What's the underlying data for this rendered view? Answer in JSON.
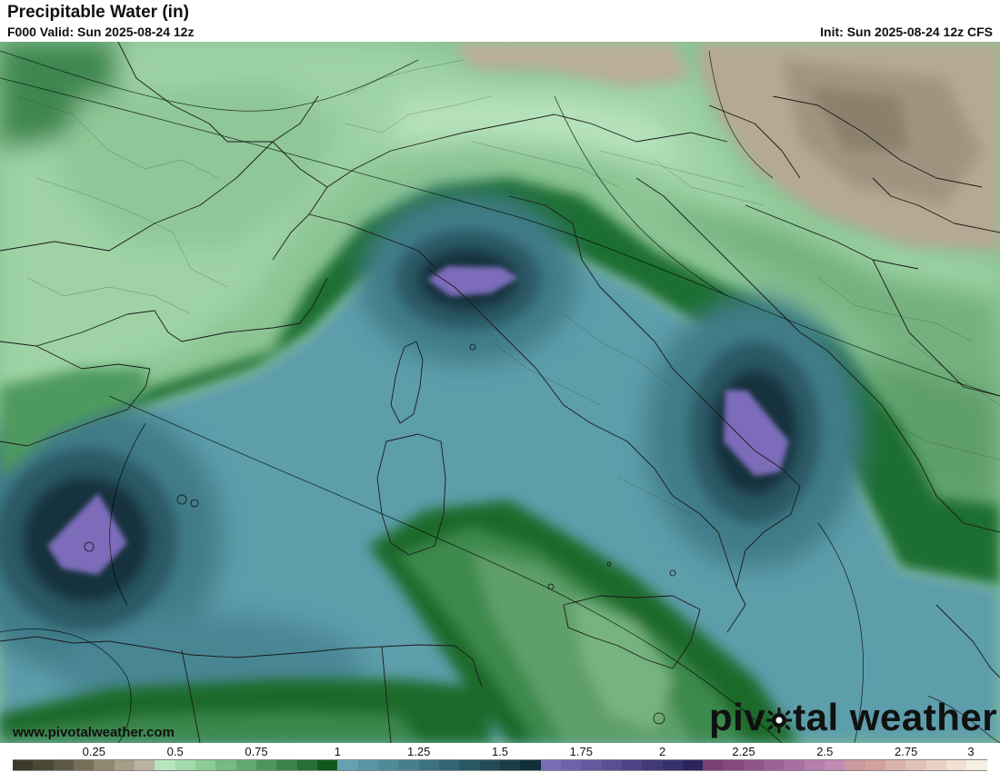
{
  "header": {
    "title": "Precipitable Water (in)",
    "valid": "F000 Valid: Sun 2025-08-24 12z",
    "init": "Init: Sun 2025-08-24 12z CFS"
  },
  "footer": {
    "url": "www.pivotalweather.com",
    "brand_left": "piv",
    "brand_right": "tal weather",
    "logo_icon": "sun-gear-icon"
  },
  "legend": {
    "ticks": [
      "0.25",
      "0.5",
      "0.75",
      "1",
      "1.25",
      "1.5",
      "1.75",
      "2",
      "2.25",
      "2.5",
      "2.75",
      "3"
    ],
    "colors": [
      "#3c3a2c",
      "#4c4836",
      "#5e5944",
      "#766f57",
      "#8f876f",
      "#a59d86",
      "#b9b29e",
      "#b6e6bd",
      "#a3d9ab",
      "#8ccb98",
      "#77bb84",
      "#62aa70",
      "#4c965c",
      "#388448",
      "#246f35",
      "#0e5a1c",
      "#63a2b2",
      "#5895a5",
      "#4f8a99",
      "#467e8d",
      "#3d7281",
      "#346573",
      "#2a5966",
      "#214b57",
      "#1a3d48",
      "#10303a",
      "#7b6cba",
      "#6f62ad",
      "#64589f",
      "#594e93",
      "#4d4486",
      "#423a79",
      "#36306b",
      "#2a255e",
      "#7a3f75",
      "#85497f",
      "#90558a",
      "#9c6295",
      "#a870a1",
      "#b47ead",
      "#c08bb5",
      "#cc98a0",
      "#d3a39b",
      "#dbb3a8",
      "#e2c2b6",
      "#e9d2c4",
      "#f0e1d3",
      "#f6eee3"
    ]
  },
  "map": {
    "region": "Western Mediterranean / Italy",
    "colors": {
      "light_green": "#a7d9ad",
      "mid_green": "#86c08c",
      "dark_green": "#0e5a1c",
      "teal": "#5a9aa8",
      "deep_teal": "#1c3b46",
      "purple_core": "#7b6cba",
      "dry_tan": "#b2a690"
    }
  }
}
